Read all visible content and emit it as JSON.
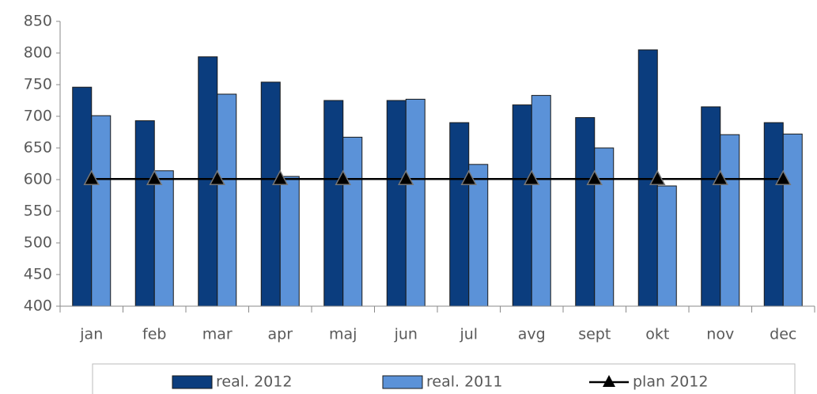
{
  "chart_data": {
    "type": "bar",
    "categories": [
      "jan",
      "feb",
      "mar",
      "apr",
      "maj",
      "jun",
      "jul",
      "avg",
      "sept",
      "okt",
      "nov",
      "dec"
    ],
    "series": [
      {
        "name": "real. 2012",
        "color": "#0b3d7e",
        "values": [
          746,
          693,
          794,
          754,
          725,
          725,
          690,
          718,
          698,
          805,
          715,
          690
        ]
      },
      {
        "name": "real. 2011",
        "color": "#5b92d8",
        "values": [
          701,
          614,
          735,
          605,
          667,
          727,
          624,
          733,
          650,
          590,
          671,
          672
        ]
      },
      {
        "name": "plan 2012",
        "type": "line",
        "color": "#000000",
        "values": [
          601,
          601,
          601,
          601,
          601,
          601,
          601,
          601,
          601,
          601,
          601,
          601
        ]
      }
    ],
    "ylim": [
      400,
      850
    ],
    "yticks": [
      400,
      450,
      500,
      550,
      600,
      650,
      700,
      750,
      800,
      850
    ],
    "grid": false,
    "legend": "bottom"
  }
}
